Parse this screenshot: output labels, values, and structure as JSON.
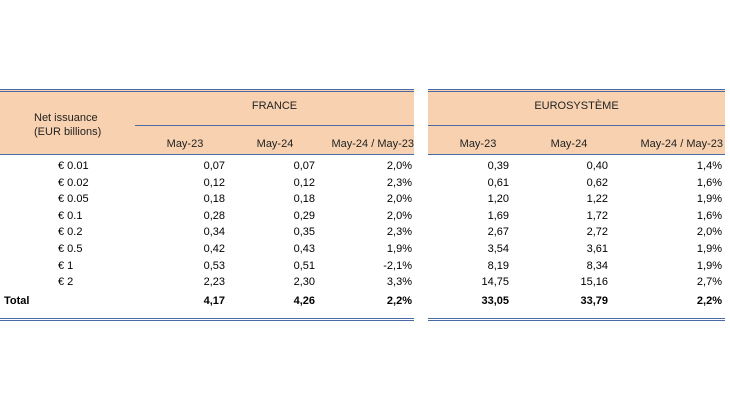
{
  "header": {
    "row_label": [
      "Net issuance",
      "(EUR billions)"
    ],
    "groups": [
      "FRANCE",
      "EUROSYSTÈME"
    ],
    "columns": [
      "May-23",
      "May-24",
      "May-24 / May-23"
    ]
  },
  "rows": [
    {
      "label": "€ 0.01",
      "fr": [
        "0,07",
        "0,07",
        "2,0%"
      ],
      "eu": [
        "0,39",
        "0,40",
        "1,4%"
      ]
    },
    {
      "label": "€ 0.02",
      "fr": [
        "0,12",
        "0,12",
        "2,3%"
      ],
      "eu": [
        "0,61",
        "0,62",
        "1,6%"
      ]
    },
    {
      "label": "€ 0.05",
      "fr": [
        "0,18",
        "0,18",
        "2,0%"
      ],
      "eu": [
        "1,20",
        "1,22",
        "1,9%"
      ]
    },
    {
      "label": "€ 0.1",
      "fr": [
        "0,28",
        "0,29",
        "2,0%"
      ],
      "eu": [
        "1,69",
        "1,72",
        "1,6%"
      ]
    },
    {
      "label": "€ 0.2",
      "fr": [
        "0,34",
        "0,35",
        "2,3%"
      ],
      "eu": [
        "2,67",
        "2,72",
        "2,0%"
      ]
    },
    {
      "label": "€ 0.5",
      "fr": [
        "0,42",
        "0,43",
        "1,9%"
      ],
      "eu": [
        "3,54",
        "3,61",
        "1,9%"
      ]
    },
    {
      "label": "€ 1",
      "fr": [
        "0,53",
        "0,51",
        "-2,1%"
      ],
      "eu": [
        "8,19",
        "8,34",
        "1,9%"
      ]
    },
    {
      "label": "€ 2",
      "fr": [
        "2,23",
        "2,30",
        "3,3%"
      ],
      "eu": [
        "14,75",
        "15,16",
        "2,7%"
      ]
    }
  ],
  "total": {
    "label": "Total",
    "fr": [
      "4,17",
      "4,26",
      "2,2%"
    ],
    "eu": [
      "33,05",
      "33,79",
      "2,2%"
    ]
  }
}
